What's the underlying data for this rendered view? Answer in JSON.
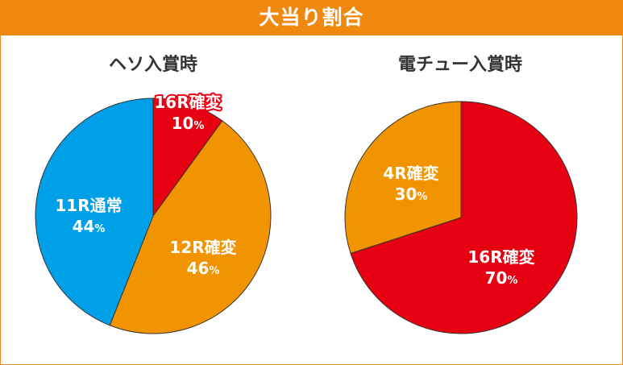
{
  "header": {
    "title": "大当り割合"
  },
  "colors": {
    "orange": "#f29400",
    "red": "#e60012",
    "blue": "#00a0e9",
    "header": "#f0870f"
  },
  "chart_data": [
    {
      "type": "pie",
      "title": "ヘソ入賞時",
      "slices": [
        {
          "label": "16R確変",
          "pct_label": "10",
          "value": 10,
          "color": "#e60012"
        },
        {
          "label": "12R確変",
          "pct_label": "46",
          "value": 46,
          "color": "#f29400"
        },
        {
          "label": "11R通常",
          "pct_label": "44",
          "value": 44,
          "color": "#00a0e9"
        }
      ],
      "unit": "%"
    },
    {
      "type": "pie",
      "title": "電チュー入賞時",
      "slices": [
        {
          "label": "16R確変",
          "pct_label": "70",
          "value": 70,
          "color": "#e60012"
        },
        {
          "label": "4R確変",
          "pct_label": "30",
          "value": 30,
          "color": "#f29400"
        }
      ],
      "unit": "%"
    }
  ]
}
